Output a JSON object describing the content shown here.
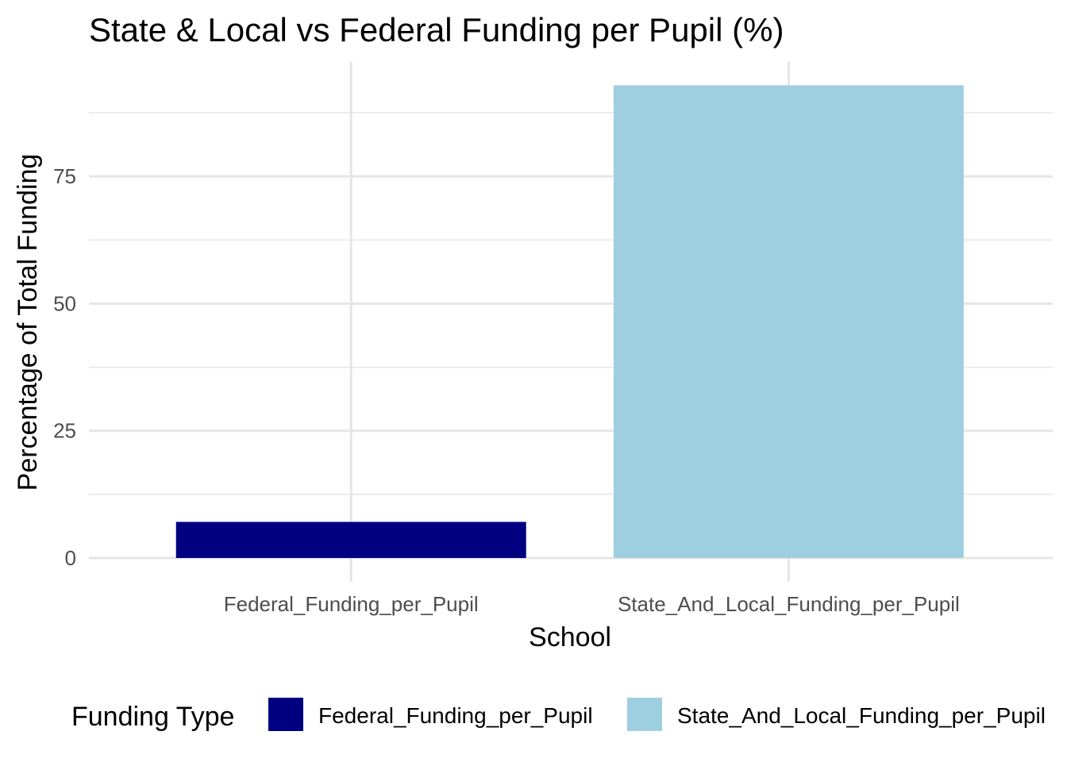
{
  "chart_data": {
    "type": "bar",
    "title": "State & Local vs Federal Funding per Pupil (%)",
    "xlabel": "School",
    "ylabel": "Percentage of Total Funding",
    "categories": [
      "Federal_Funding_per_Pupil",
      "State_And_Local_Funding_per_Pupil"
    ],
    "values": [
      7.1,
      92.9
    ],
    "colors": [
      "#000080",
      "#9ecfe0"
    ],
    "ylim": [
      0,
      97.5
    ],
    "yticks": [
      0,
      25,
      50,
      75
    ],
    "grid": true,
    "legend": {
      "title": "Funding Type",
      "position": "bottom",
      "entries": [
        "Federal_Funding_per_Pupil",
        "State_And_Local_Funding_per_Pupil"
      ]
    }
  }
}
